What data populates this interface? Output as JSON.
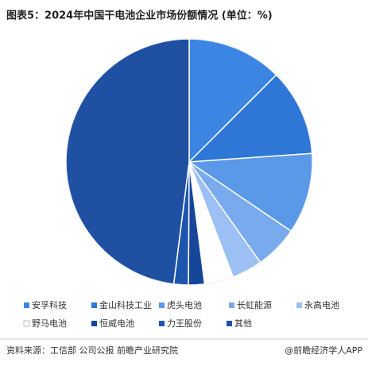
{
  "chart_data": {
    "type": "pie",
    "title": "图表5：2024年中国干电池企业市场份额情况 (单位：%)",
    "categories": [
      "安孚科技",
      "金山科技工业",
      "虎头电池",
      "长虹能源",
      "永高电池",
      "野马电池",
      "恒威电池",
      "力王股份",
      "其他"
    ],
    "values": [
      12.5,
      11.4,
      10.6,
      5.7,
      4.0,
      3.8,
      2.1,
      1.9,
      48.0
    ],
    "colors": [
      "#3b86e2",
      "#2e77d6",
      "#5a98e8",
      "#7aaaee",
      "#9cc0f4",
      "#ffffff",
      "#16469a",
      "#1d55ae",
      "#1f50a2"
    ],
    "source": "资料来源：工信部 公司公报 前瞻产业研究院",
    "credit": "@前瞻经济学人APP"
  }
}
